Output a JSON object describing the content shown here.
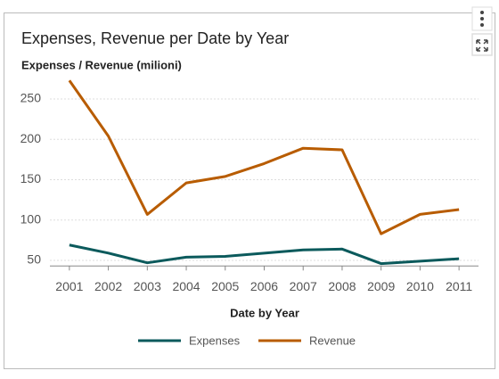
{
  "chart_data": {
    "type": "line",
    "title": "Expenses, Revenue per Date by Year",
    "y_label": "Expenses / Revenue (milioni)",
    "x_label": "Date by Year",
    "categories": [
      "2001",
      "2002",
      "2003",
      "2004",
      "2005",
      "2006",
      "2007",
      "2008",
      "2009",
      "2010",
      "2011"
    ],
    "series": [
      {
        "name": "Expenses",
        "color": "#0b5a5c",
        "values": [
          69,
          59,
          47,
          54,
          55,
          59,
          63,
          64,
          46,
          49,
          52
        ]
      },
      {
        "name": "Revenue",
        "color": "#b85c00",
        "values": [
          273,
          204,
          107,
          146,
          154,
          170,
          189,
          187,
          83,
          107,
          113
        ]
      }
    ],
    "ylim": [
      43,
      275
    ],
    "yticks": [
      50,
      100,
      150,
      200,
      250
    ],
    "grid": true
  }
}
